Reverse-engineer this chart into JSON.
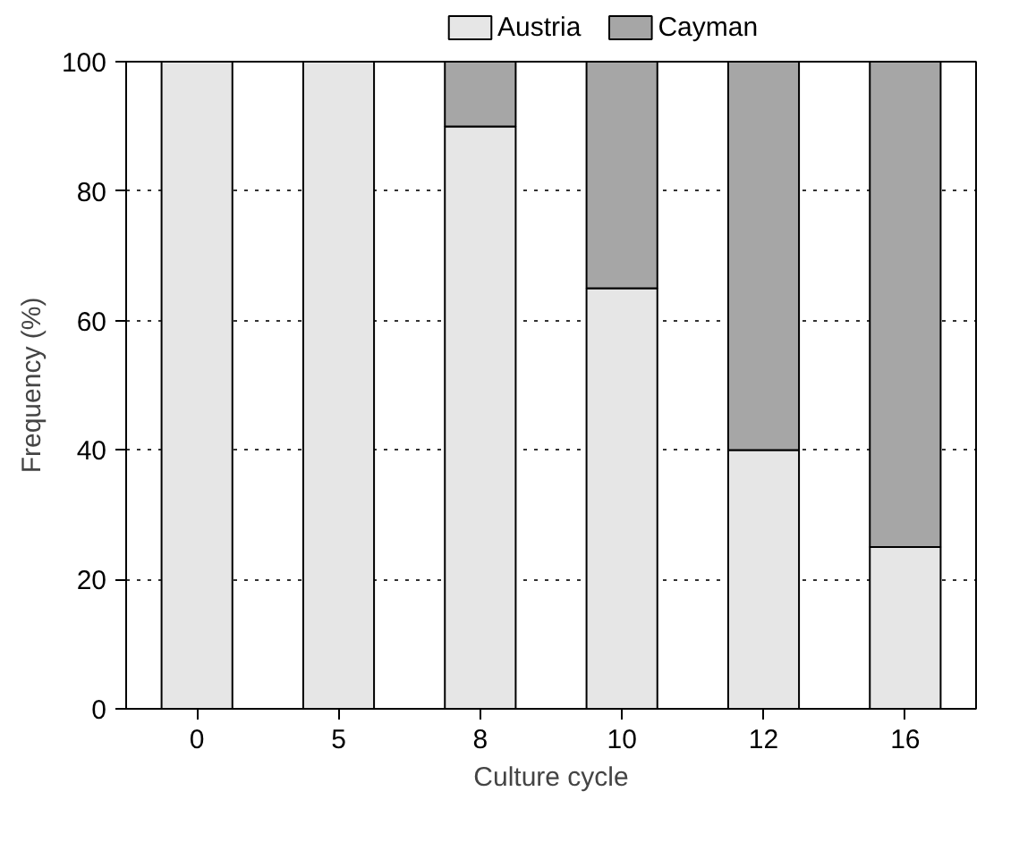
{
  "chart_data": {
    "type": "bar",
    "stacked": true,
    "xlabel": "Culture cycle",
    "ylabel": "Frequency (%)",
    "categories": [
      "0",
      "5",
      "8",
      "10",
      "12",
      "16"
    ],
    "series": [
      {
        "name": "Austria",
        "color": "#e6e6e6",
        "values": [
          100,
          100,
          90,
          65,
          40,
          25
        ]
      },
      {
        "name": "Cayman",
        "color": "#a6a6a6",
        "values": [
          0,
          0,
          10,
          35,
          60,
          75
        ]
      }
    ],
    "ylim": [
      0,
      100
    ],
    "yticks": [
      0,
      20,
      40,
      60,
      80,
      100
    ],
    "grid": "y",
    "legend": "top"
  }
}
